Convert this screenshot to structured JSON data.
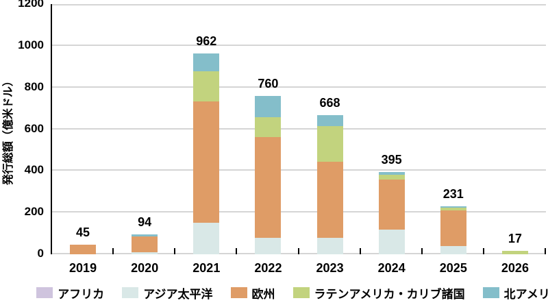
{
  "chart_data": {
    "type": "bar",
    "stacked": true,
    "title": "",
    "xlabel": "",
    "ylabel": "発行総額（億米ドル）",
    "ylim": [
      0,
      1200
    ],
    "ytick_step": 200,
    "grid": true,
    "legend_position": "bottom",
    "categories": [
      "2019",
      "2020",
      "2021",
      "2022",
      "2023",
      "2024",
      "2025",
      "2026"
    ],
    "series": [
      {
        "name": "アフリカ",
        "color": "#cfc4de",
        "values": [
          0,
          0,
          0,
          0,
          0,
          0,
          0,
          0
        ]
      },
      {
        "name": "アジア太平洋",
        "color": "#d9e8e7",
        "values": [
          0,
          10,
          150,
          79,
          80,
          119,
          38,
          0
        ]
      },
      {
        "name": "欧州",
        "color": "#df9c66",
        "values": [
          45,
          75,
          582,
          483,
          365,
          238,
          174,
          0
        ]
      },
      {
        "name": "ラテンアメリカ・カリブ諸国",
        "color": "#c2d37e",
        "values": [
          0,
          0,
          145,
          95,
          171,
          23,
          11,
          17
        ]
      },
      {
        "name": "北アメリカ",
        "color": "#84beca",
        "values": [
          0,
          9,
          85,
          103,
          52,
          15,
          8,
          0
        ]
      }
    ],
    "totals": [
      45,
      94,
      962,
      760,
      668,
      395,
      231,
      17
    ],
    "axis_color": "#000000",
    "gridline_color": "#d5d5d5"
  }
}
